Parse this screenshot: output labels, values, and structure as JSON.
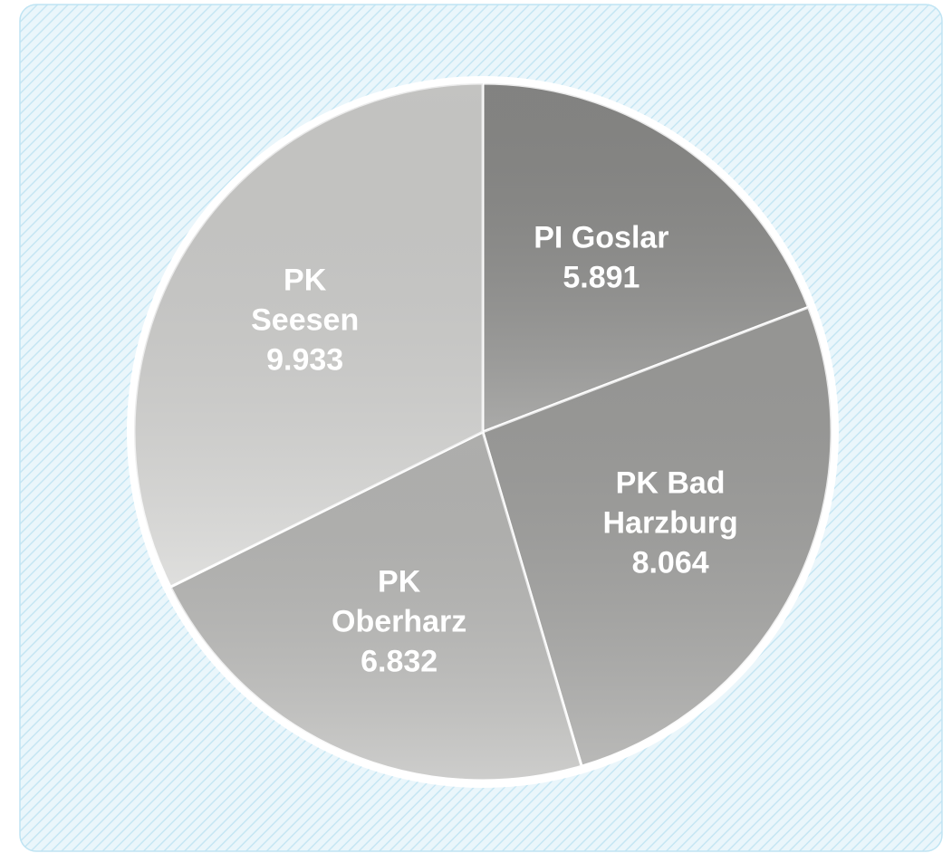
{
  "chart_data": {
    "type": "pie",
    "categories": [
      "PI Goslar",
      "PK Bad Harzburg",
      "PK Oberharz",
      "PK Seesen"
    ],
    "values": [
      5891,
      8064,
      6832,
      9933
    ],
    "value_labels": [
      "5.891",
      "8.064",
      "6.832",
      "9.933"
    ],
    "colors": [
      "#8e8e8c",
      "#a2a2a0",
      "#bdbdbb",
      "#d4d4d2"
    ]
  }
}
